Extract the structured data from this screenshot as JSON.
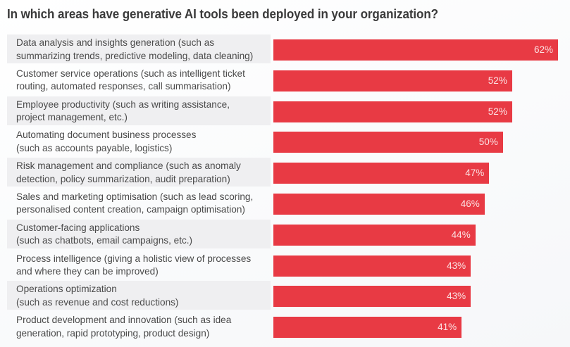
{
  "chart_data": {
    "type": "bar",
    "orientation": "horizontal",
    "title": "In which areas have generative AI tools been deployed in your organization?",
    "xlabel": "",
    "ylabel": "",
    "xlim": [
      0,
      62
    ],
    "grid": false,
    "bar_color": "#e83a44",
    "value_suffix": "%",
    "categories": [
      "Data analysis and insights generation (such as\nsummarizing trends, predictive modeling, data cleaning)",
      "Customer service operations (such as intelligent ticket\nrouting, automated responses, call summarisation)",
      "Employee productivity (such as writing assistance,\nproject management, etc.)",
      "Automating document business processes\n(such as accounts payable, logistics)",
      "Risk management and compliance (such as anomaly\ndetection, policy summarization, audit preparation)",
      "Sales and marketing optimisation (such as lead scoring,\npersonalised content creation, campaign optimisation)",
      "Customer-facing applications\n(such as chatbots, email campaigns, etc.)",
      "Process intelligence (giving a holistic view of processes\nand where they can be improved)",
      "Operations optimization\n(such as revenue and cost reductions)",
      "Product development and innovation (such as idea\ngeneration, rapid prototyping, product design)"
    ],
    "values": [
      62,
      52,
      52,
      50,
      47,
      46,
      44,
      43,
      43,
      41
    ],
    "value_labels": [
      "62%",
      "52%",
      "52%",
      "50%",
      "47%",
      "46%",
      "44%",
      "43%",
      "43%",
      "41%"
    ]
  }
}
